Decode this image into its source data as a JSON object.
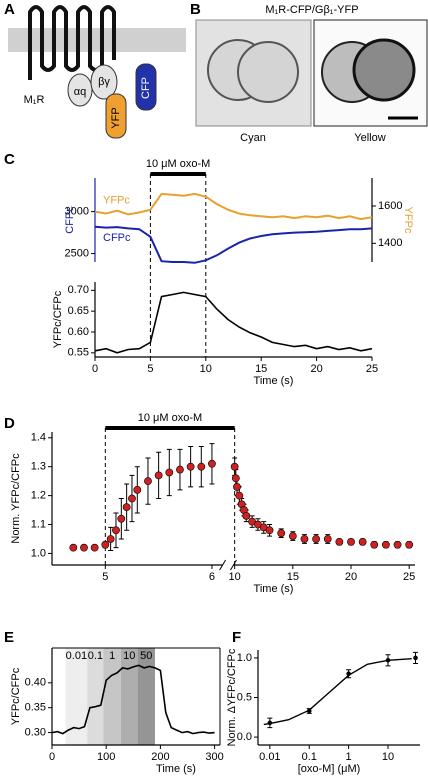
{
  "panel_labels": [
    "A",
    "B",
    "C",
    "D",
    "E",
    "F"
  ],
  "diagram": {
    "receptor": "M₁R",
    "alpha": "αq",
    "beta_gamma": "βγ",
    "yfp": "YFP",
    "cfp": "CFP"
  },
  "images": {
    "title": "M₁R-CFP/Gβ₁-YFP",
    "labels": [
      "Cyan",
      "Yellow"
    ]
  },
  "chart_data": [
    {
      "type": "line",
      "annotation": "10 μM oxo-M",
      "annotation_x": [
        5,
        10
      ],
      "x": [
        0,
        1,
        2,
        3,
        4,
        5,
        6,
        7,
        8,
        9,
        10,
        11,
        12,
        13,
        14,
        15,
        16,
        17,
        18,
        19,
        20,
        21,
        22,
        23,
        24,
        25
      ],
      "xlim": [
        0,
        25
      ],
      "series": [
        {
          "name": "YFPc",
          "color": "#e8a030",
          "axis": "y2",
          "values": [
            1570,
            1560,
            1575,
            1555,
            1565,
            1580,
            1665,
            1660,
            1655,
            1665,
            1650,
            1610,
            1580,
            1560,
            1550,
            1545,
            1540,
            1545,
            1535,
            1545,
            1540,
            1548,
            1535,
            1545,
            1530,
            1540
          ]
        },
        {
          "name": "CFPc",
          "color": "#1a22b0",
          "values": [
            2820,
            2810,
            2815,
            2800,
            2790,
            2700,
            2410,
            2400,
            2400,
            2390,
            2420,
            2480,
            2560,
            2630,
            2680,
            2710,
            2730,
            2740,
            2750,
            2755,
            2760,
            2770,
            2780,
            2790,
            2790,
            2800
          ]
        }
      ],
      "ylabel": "CFPc",
      "y2label": "YFPc",
      "ylim": [
        2400,
        3400
      ],
      "yticks": [
        2500,
        3000
      ],
      "y2lim": [
        1300,
        1750
      ],
      "y2ticks": [
        1400,
        1600
      ]
    },
    {
      "type": "line",
      "color": "#000000",
      "x": [
        0,
        1,
        2,
        3,
        4,
        5,
        6,
        7,
        8,
        9,
        10,
        11,
        12,
        13,
        14,
        15,
        16,
        17,
        18,
        19,
        20,
        21,
        22,
        23,
        24,
        25
      ],
      "values": [
        0.555,
        0.56,
        0.55,
        0.558,
        0.56,
        0.575,
        0.685,
        0.69,
        0.695,
        0.69,
        0.685,
        0.655,
        0.63,
        0.612,
        0.598,
        0.588,
        0.575,
        0.57,
        0.565,
        0.568,
        0.56,
        0.565,
        0.558,
        0.562,
        0.555,
        0.56
      ],
      "ylabel": "YFPc/CFPc",
      "xlabel": "Time (s)",
      "xlim": [
        0,
        25
      ],
      "xticks": [
        0,
        5,
        10,
        15,
        20,
        25
      ],
      "ylim": [
        0.54,
        0.72
      ],
      "yticks": [
        0.55,
        {
          "value": 0.6,
          "label": "0.60"
        },
        0.65,
        {
          "value": 0.7,
          "label": "0.70"
        }
      ]
    },
    {
      "type": "scatter",
      "color": "#cc2222",
      "annotation": "10 μM oxo-M",
      "annotation_x": [
        5,
        10
      ],
      "x": [
        4.7,
        4.8,
        4.9,
        5.0,
        5.05,
        5.1,
        5.15,
        5.2,
        5.25,
        5.3,
        5.4,
        5.5,
        5.6,
        5.7,
        5.8,
        5.9,
        6.0,
        10,
        10.1,
        10.2,
        10.4,
        10.6,
        10.8,
        11,
        11.5,
        12,
        12.5,
        13,
        14,
        15,
        16,
        17,
        18,
        19,
        20,
        21,
        22,
        23,
        24,
        25
      ],
      "values": [
        1.02,
        1.02,
        1.02,
        1.03,
        1.05,
        1.08,
        1.12,
        1.16,
        1.19,
        1.22,
        1.25,
        1.27,
        1.28,
        1.29,
        1.3,
        1.3,
        1.31,
        1.3,
        1.26,
        1.23,
        1.2,
        1.17,
        1.15,
        1.13,
        1.11,
        1.1,
        1.09,
        1.08,
        1.07,
        1.06,
        1.05,
        1.05,
        1.05,
        1.04,
        1.04,
        1.04,
        1.03,
        1.03,
        1.03,
        1.03
      ],
      "errors": [
        0.005,
        0.005,
        0.005,
        0.01,
        0.04,
        0.06,
        0.07,
        0.08,
        0.08,
        0.08,
        0.08,
        0.08,
        0.08,
        0.07,
        0.07,
        0.07,
        0.07,
        0.03,
        0.03,
        0.03,
        0.03,
        0.02,
        0.02,
        0.02,
        0.02,
        0.02,
        0.02,
        0.02,
        0.015,
        0.015,
        0.015,
        0.015,
        0.015,
        0.01,
        0.01,
        0.01,
        0.01,
        0.01,
        0.01,
        0.01
      ],
      "ylabel": "Norm. YFPc/CFPc",
      "xlabel": "Time (s)",
      "xlim": [
        [
          4.5,
          6.1
        ],
        [
          9.9,
          25.5
        ]
      ],
      "xticks": [
        5,
        6,
        10,
        15,
        20,
        25
      ],
      "ylim": [
        0.96,
        1.42
      ],
      "yticks": [
        {
          "value": 1.0,
          "label": "1.0"
        },
        1.1,
        1.2,
        1.3,
        1.4
      ]
    },
    {
      "type": "line",
      "color": "#000000",
      "bands": [
        {
          "label": "0.01",
          "start": 25,
          "end": 65,
          "color": "#eeeeee"
        },
        {
          "label": "0.1",
          "start": 65,
          "end": 95,
          "color": "#dcdcdc"
        },
        {
          "label": "1",
          "start": 95,
          "end": 127,
          "color": "#c6c6c6"
        },
        {
          "label": "10",
          "start": 127,
          "end": 158,
          "color": "#aeaeae"
        },
        {
          "label": "50",
          "start": 158,
          "end": 190,
          "color": "#959595"
        }
      ],
      "x": [
        0,
        10,
        20,
        30,
        40,
        50,
        60,
        70,
        80,
        90,
        100,
        110,
        120,
        130,
        140,
        150,
        160,
        170,
        180,
        190,
        200,
        210,
        220,
        230,
        240,
        250,
        260,
        270,
        280,
        290,
        300
      ],
      "values": [
        0.3,
        0.302,
        0.298,
        0.305,
        0.31,
        0.308,
        0.312,
        0.35,
        0.352,
        0.355,
        0.405,
        0.415,
        0.42,
        0.43,
        0.428,
        0.432,
        0.435,
        0.43,
        0.433,
        0.43,
        0.425,
        0.34,
        0.31,
        0.305,
        0.3,
        0.302,
        0.298,
        0.3,
        0.301,
        0.299,
        0.3
      ],
      "ylabel": "YFPc/CFPc",
      "xlabel": "Time (s)",
      "xlim": [
        0,
        310
      ],
      "xticks": [
        0,
        100,
        200,
        300
      ],
      "ylim": [
        0.275,
        0.47
      ],
      "yticks": [
        {
          "value": 0.3,
          "label": "0.30"
        },
        0.35,
        {
          "value": 0.4,
          "label": "0.40"
        }
      ]
    },
    {
      "type": "scatter",
      "color": "#000000",
      "log_x": true,
      "x": [
        0.01,
        0.1,
        1,
        10,
        50
      ],
      "values": [
        0.18,
        0.33,
        0.8,
        0.97,
        1.0
      ],
      "errors": [
        0.06,
        0.03,
        0.05,
        0.07,
        0.07
      ],
      "fit": {
        "x": [
          0.007,
          0.01,
          0.03,
          0.1,
          0.3,
          1,
          3,
          10,
          40
        ],
        "values": [
          0.16,
          0.17,
          0.22,
          0.34,
          0.55,
          0.78,
          0.92,
          0.97,
          0.99
        ]
      },
      "ylabel": "Norm. ΔYFPc/CFPc",
      "xlabel": "[oxo-M] (μM)",
      "xlim": [
        0.005,
        65
      ],
      "xticks": [
        0.01,
        0.1,
        1,
        10
      ],
      "ylim": [
        -0.1,
        1.1
      ],
      "yticks": [
        {
          "value": 0,
          "label": "0.0"
        },
        0.5,
        {
          "value": 1,
          "label": "1.0"
        }
      ]
    }
  ]
}
